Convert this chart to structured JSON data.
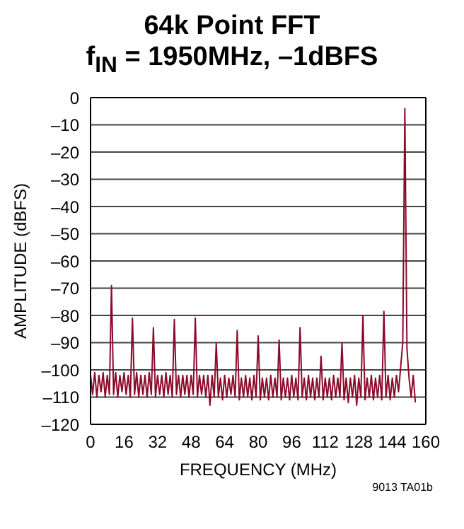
{
  "chart_data": {
    "type": "line",
    "title": "64k Point FFT",
    "subtitle": "f$_{IN}$ = 1950MHz, –1dBFS",
    "xlabel": "FREQUENCY (MHz)",
    "ylabel": "AMPLITUDE (dBFS)",
    "annotations": [
      "9013 TA01b"
    ],
    "x": [
      0,
      1,
      2,
      3,
      4,
      5,
      6,
      7,
      8,
      9,
      10,
      11,
      12,
      13,
      14,
      15,
      16,
      17,
      18,
      19,
      20,
      21,
      22,
      23,
      24,
      25,
      26,
      27,
      28,
      29,
      30,
      31,
      32,
      33,
      34,
      35,
      36,
      37,
      38,
      39,
      40,
      41,
      42,
      43,
      44,
      45,
      46,
      47,
      48,
      49,
      50,
      51,
      52,
      53,
      54,
      55,
      56,
      57,
      58,
      59,
      60,
      61,
      62,
      63,
      64,
      65,
      66,
      67,
      68,
      69,
      70,
      71,
      72,
      73,
      74,
      75,
      76,
      77,
      78,
      79,
      80,
      81,
      82,
      83,
      84,
      85,
      86,
      87,
      88,
      89,
      90,
      91,
      92,
      93,
      94,
      95,
      96,
      97,
      98,
      99,
      100,
      101,
      102,
      103,
      104,
      105,
      106,
      107,
      108,
      109,
      110,
      111,
      112,
      113,
      114,
      115,
      116,
      117,
      118,
      119,
      120,
      121,
      122,
      123,
      124,
      125,
      126,
      127,
      128,
      129,
      130,
      131,
      132,
      133,
      134,
      135,
      136,
      137,
      138,
      139,
      140,
      141,
      142,
      143,
      144,
      145,
      146,
      147,
      148,
      149,
      150,
      151,
      152,
      153,
      154,
      155
    ],
    "series": [
      {
        "color": "#8b0a2a",
        "values": [
          -102,
          -109,
          -101,
          -110,
          -102,
          -108,
          -101,
          -110,
          -102,
          -109,
          -69,
          -109,
          -101,
          -110,
          -102,
          -108,
          -101,
          -109,
          -102,
          -110,
          -81,
          -109,
          -101,
          -110,
          -102,
          -109,
          -102,
          -110,
          -101,
          -109,
          -84.5,
          -110,
          -102,
          -109,
          -102,
          -110,
          -101,
          -109,
          -102,
          -110,
          -81.5,
          -109,
          -102,
          -110,
          -102,
          -109,
          -102,
          -110,
          -102,
          -109,
          -81,
          -110,
          -102,
          -109,
          -102,
          -110,
          -102,
          -113,
          -102,
          -110,
          -90,
          -110,
          -103,
          -111,
          -102,
          -110,
          -103,
          -109,
          -102,
          -110,
          -85.5,
          -111,
          -103,
          -110,
          -102,
          -110,
          -103,
          -111,
          -102,
          -110,
          -87.5,
          -111,
          -103,
          -110,
          -103,
          -111,
          -102,
          -110,
          -103,
          -110,
          -89,
          -111,
          -103,
          -110,
          -103,
          -111,
          -102,
          -110,
          -103,
          -111,
          -84.5,
          -110,
          -103,
          -111,
          -102,
          -110,
          -103,
          -111,
          -103,
          -110,
          -95,
          -111,
          -103,
          -110,
          -103,
          -111,
          -102,
          -110,
          -103,
          -110,
          -90,
          -111,
          -103,
          -112,
          -103,
          -110,
          -102,
          -113,
          -103,
          -110,
          -80,
          -111,
          -103,
          -110,
          -102,
          -111,
          -103,
          -110,
          -102,
          -111,
          -78.5,
          -110,
          -102,
          -111,
          -103,
          -110,
          -102,
          -108,
          -99,
          -90,
          -4,
          -92,
          -103,
          -110,
          -102,
          -112
        ]
      }
    ],
    "xlim": [
      0,
      160
    ],
    "xticks": [
      0,
      16,
      32,
      48,
      64,
      80,
      96,
      112,
      128,
      144,
      160
    ],
    "ylim": [
      -120,
      0
    ],
    "yticks": [
      0,
      {
        "value": -10,
        "label": "–10"
      },
      {
        "value": -20,
        "label": "–20"
      },
      {
        "value": -30,
        "label": "–30"
      },
      {
        "value": -40,
        "label": "–40"
      },
      {
        "value": -50,
        "label": "–50"
      },
      {
        "value": -60,
        "label": "–60"
      },
      {
        "value": -70,
        "label": "–70"
      },
      {
        "value": -80,
        "label": "–80"
      },
      {
        "value": -90,
        "label": "–90"
      },
      {
        "value": -100,
        "label": "–100"
      },
      {
        "value": -110,
        "label": "–110"
      },
      {
        "value": -120,
        "label": "–120"
      }
    ],
    "grid": "y",
    "legend": false,
    "marker": "none",
    "line_style": "solid"
  }
}
